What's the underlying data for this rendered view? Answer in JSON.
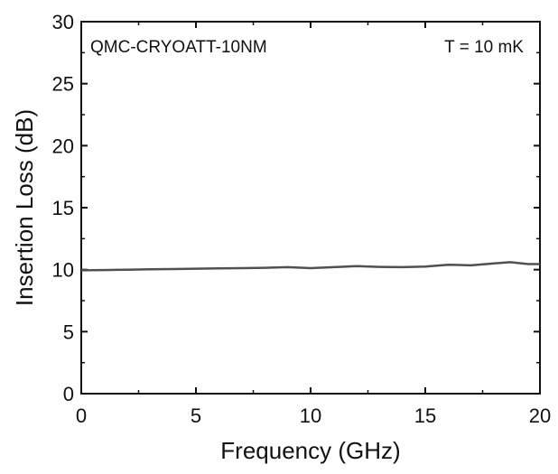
{
  "chart_data": {
    "type": "line",
    "title": "",
    "xlabel": "Frequency (GHz)",
    "ylabel": "Insertion Loss (dB)",
    "xlim": [
      0,
      20
    ],
    "ylim": [
      0,
      30
    ],
    "x_ticks": [
      0,
      5,
      10,
      15,
      20
    ],
    "y_ticks": [
      0,
      5,
      10,
      15,
      20,
      25,
      30
    ],
    "grid": false,
    "annotations": {
      "device": "QMC-CRYOATT-10NM",
      "temperature": "T = 10 mK"
    },
    "line_color": "#505050",
    "series": [
      {
        "x": [
          0,
          1,
          2,
          3,
          4,
          5,
          6,
          7,
          8,
          9,
          10,
          11,
          12,
          13,
          14,
          15,
          16,
          17,
          18,
          18.7,
          19.5,
          20
        ],
        "values": [
          9.95,
          9.97,
          10.0,
          10.03,
          10.05,
          10.08,
          10.1,
          10.12,
          10.15,
          10.2,
          10.12,
          10.2,
          10.28,
          10.22,
          10.2,
          10.25,
          10.4,
          10.35,
          10.5,
          10.6,
          10.45,
          10.45
        ]
      }
    ]
  }
}
